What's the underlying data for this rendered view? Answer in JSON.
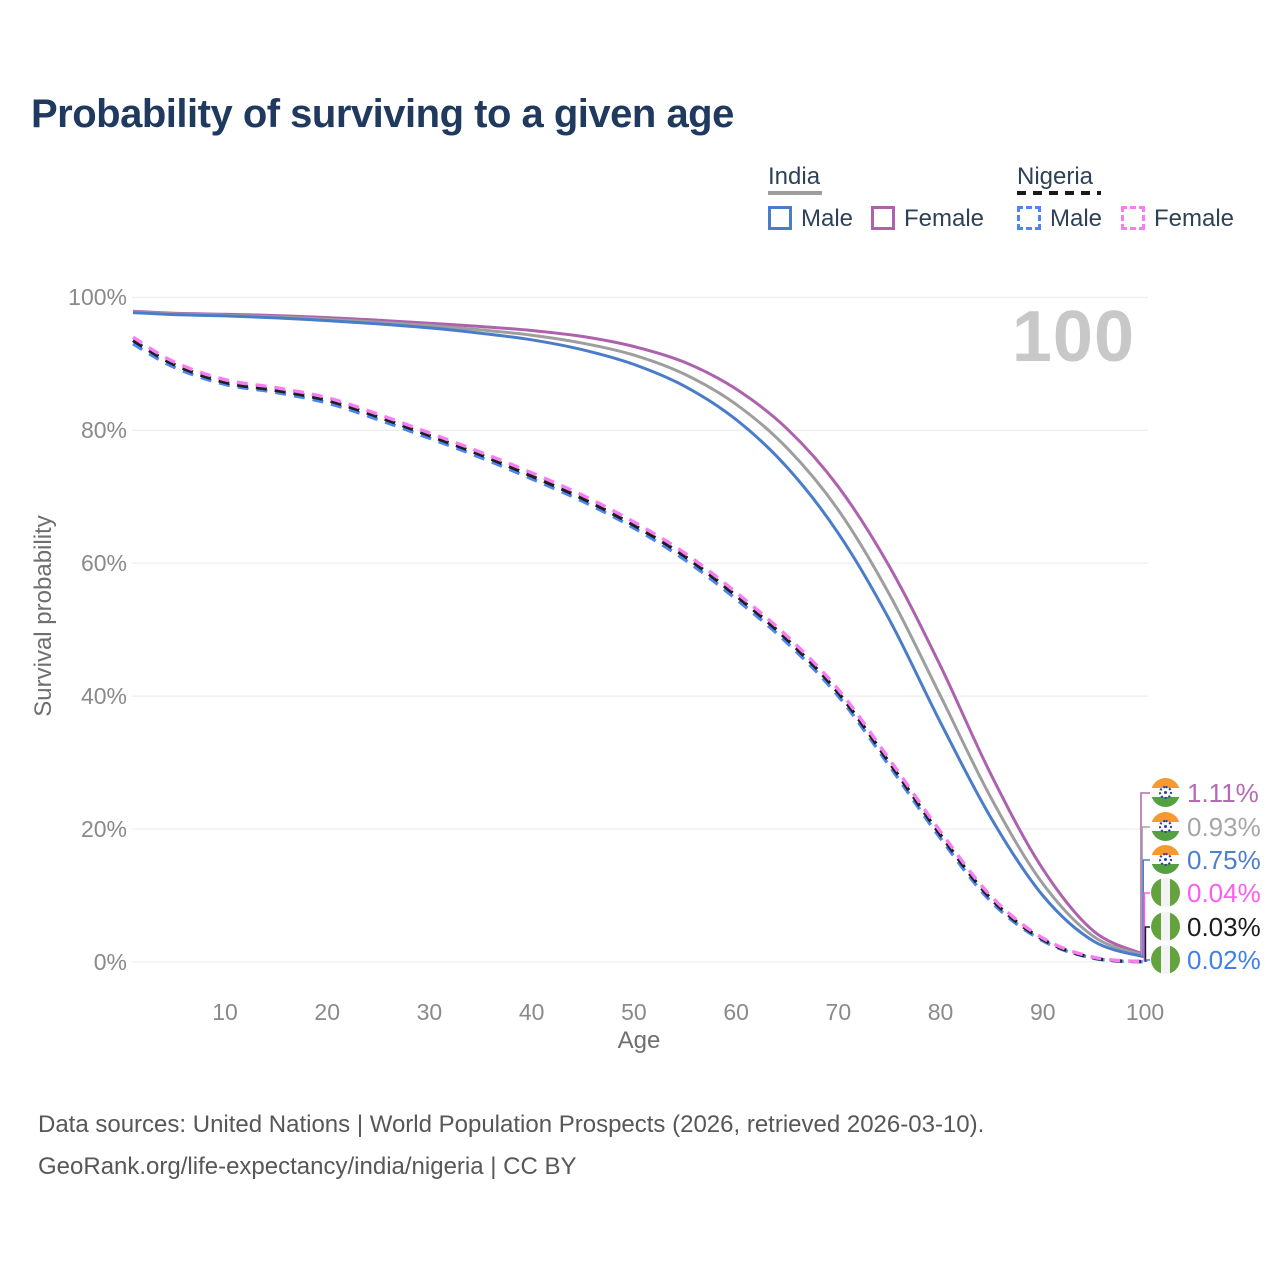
{
  "page": {
    "title": "Probability of surviving to a given age",
    "watermark": "100",
    "footer_line1": "Data sources: United Nations | World Population Prospects (2026, retrieved 2026-03-10).",
    "footer_line2": "GeoRank.org/life-expectancy/india/nigeria | CC BY"
  },
  "legend": {
    "groups": [
      {
        "label": "India",
        "underline_style": "solid",
        "underline_color": "#9e9e9e",
        "items": [
          {
            "label": "Male",
            "color": "#4a7dc9",
            "style": "solid"
          },
          {
            "label": "Female",
            "color": "#ae62ae",
            "style": "solid"
          }
        ]
      },
      {
        "label": "Nigeria",
        "underline_style": "dashed",
        "underline_color": "#1a1a1a",
        "items": [
          {
            "label": "Male",
            "color": "#4c86f0",
            "style": "dashed"
          },
          {
            "label": "Female",
            "color": "#f97df2",
            "style": "dashed"
          }
        ]
      }
    ]
  },
  "chart_data": {
    "type": "line",
    "title": "Probability of surviving to a given age",
    "xlabel": "Age",
    "ylabel": "Survival probability",
    "xlim": [
      1,
      100
    ],
    "ylim": [
      0,
      100
    ],
    "grid": "horizontal",
    "legend_position": "top-right",
    "x_ticks": [
      10,
      20,
      30,
      40,
      50,
      60,
      70,
      80,
      90,
      100
    ],
    "y_ticks": [
      0,
      20,
      40,
      60,
      80,
      100
    ],
    "y_tick_suffix": "%",
    "ages": [
      1,
      5,
      10,
      15,
      20,
      25,
      30,
      35,
      40,
      45,
      50,
      55,
      60,
      65,
      70,
      75,
      80,
      85,
      90,
      95,
      100
    ],
    "series": [
      {
        "id": "india-female",
        "country": "India",
        "sex": "Female",
        "style": "solid",
        "color": "#ae62ae",
        "end_label": "1.11%",
        "values": [
          97.9,
          97.6,
          97.45,
          97.25,
          96.95,
          96.55,
          96.1,
          95.6,
          95.0,
          94.1,
          92.6,
          90.2,
          86.2,
          80.2,
          71.5,
          59.5,
          44.5,
          28.0,
          14.0,
          4.6,
          1.11
        ]
      },
      {
        "id": "india-both-sexes",
        "country": "India",
        "sex": "Both sexes",
        "style": "solid",
        "color": "#9e9e9e",
        "end_label": "0.93%",
        "values": [
          97.8,
          97.5,
          97.3,
          97.05,
          96.7,
          96.25,
          95.75,
          95.1,
          94.3,
          93.1,
          91.3,
          88.4,
          83.9,
          77.3,
          68.0,
          55.3,
          40.0,
          24.5,
          11.8,
          3.8,
          0.93
        ]
      },
      {
        "id": "india-male",
        "country": "India",
        "sex": "Male",
        "style": "solid",
        "color": "#4a7dc9",
        "end_label": "0.75%",
        "values": [
          97.7,
          97.4,
          97.2,
          96.9,
          96.5,
          96.0,
          95.4,
          94.6,
          93.6,
          92.1,
          89.9,
          86.6,
          81.6,
          74.4,
          64.5,
          51.5,
          36.0,
          21.5,
          10.0,
          3.1,
          0.75
        ]
      },
      {
        "id": "nigeria-female",
        "country": "Nigeria",
        "sex": "Female",
        "style": "dashed",
        "color": "#f97df2",
        "end_label": "0.04%",
        "values": [
          94.0,
          90.3,
          87.6,
          86.4,
          84.9,
          82.4,
          79.6,
          76.7,
          73.6,
          70.2,
          66.2,
          61.5,
          55.6,
          49.0,
          41.0,
          30.5,
          19.6,
          9.8,
          3.6,
          0.7,
          0.04
        ]
      },
      {
        "id": "nigeria-both-sexes",
        "country": "Nigeria",
        "sex": "Both sexes",
        "style": "dashed",
        "color": "#1f1f1f",
        "end_label": "0.03%",
        "values": [
          93.5,
          89.9,
          87.2,
          86.0,
          84.5,
          82.0,
          79.2,
          76.3,
          73.1,
          69.7,
          65.7,
          61.0,
          55.1,
          48.5,
          40.5,
          30.0,
          19.1,
          9.4,
          3.4,
          0.6,
          0.03
        ]
      },
      {
        "id": "nigeria-male",
        "country": "Nigeria",
        "sex": "Male",
        "style": "dashed",
        "color": "#4c86f0",
        "end_label": "0.02%",
        "values": [
          93.0,
          89.5,
          86.9,
          85.7,
          84.1,
          81.6,
          78.8,
          75.9,
          72.7,
          69.3,
          65.3,
          60.5,
          54.6,
          48.0,
          40.0,
          29.5,
          18.6,
          9.0,
          3.2,
          0.55,
          0.02
        ]
      }
    ],
    "end_labels": [
      {
        "value": "1.11%",
        "color": "#b46ab4",
        "flag": "india"
      },
      {
        "value": "0.93%",
        "color": "#a6a6a6",
        "flag": "india"
      },
      {
        "value": "0.75%",
        "color": "#4c80ca",
        "flag": "india"
      },
      {
        "value": "0.04%",
        "color": "#fb5df1",
        "flag": "nigeria"
      },
      {
        "value": "0.03%",
        "color": "#1c1c1c",
        "flag": "nigeria"
      },
      {
        "value": "0.02%",
        "color": "#3f80ea",
        "flag": "nigeria"
      }
    ]
  }
}
